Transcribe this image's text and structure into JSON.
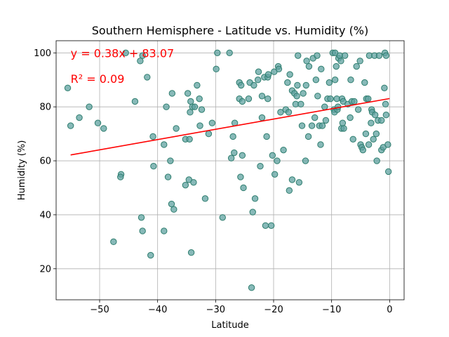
{
  "chart_data": {
    "type": "scatter",
    "title": "Southern Hemisphere - Latitude vs. Humidity (%)",
    "xlabel": "Latitude",
    "ylabel": "Humidity (%)",
    "xlim": [
      -57.5,
      2.5
    ],
    "ylim": [
      8.5,
      104.5
    ],
    "xticks": [
      -50,
      -40,
      -30,
      -20,
      -10,
      0
    ],
    "yticks": [
      20,
      40,
      60,
      80,
      100
    ],
    "grid": true,
    "marker_fill": "#5fa2a0",
    "marker_edge": "#2e7d6e",
    "regression": {
      "slope": 0.38,
      "intercept": 83.07,
      "x_range": [
        -55,
        0
      ],
      "color": "#ff0000",
      "equation_label": "y = 0.38x + 83.07",
      "r2_label": "R² = 0.09",
      "equation_pos": [
        -55,
        100
      ],
      "r2_pos": [
        -55,
        90.5
      ]
    },
    "points": [
      [
        -55.5,
        87
      ],
      [
        -55,
        73
      ],
      [
        -53.5,
        76
      ],
      [
        -51.8,
        80
      ],
      [
        -50.3,
        74
      ],
      [
        -49.3,
        72
      ],
      [
        -47.6,
        30
      ],
      [
        -46.3,
        55
      ],
      [
        -46.4,
        54
      ],
      [
        -45.5,
        100
      ],
      [
        -43.9,
        82
      ],
      [
        -43,
        97
      ],
      [
        -42.6,
        99
      ],
      [
        -42.8,
        39
      ],
      [
        -42.6,
        34
      ],
      [
        -41.8,
        91
      ],
      [
        -41.2,
        25
      ],
      [
        -40.8,
        69
      ],
      [
        -40.7,
        58
      ],
      [
        -38.9,
        66
      ],
      [
        -38.9,
        34
      ],
      [
        -38.5,
        80
      ],
      [
        -38.2,
        54
      ],
      [
        -37.8,
        60
      ],
      [
        -37.6,
        44
      ],
      [
        -37.5,
        85
      ],
      [
        -37.2,
        42
      ],
      [
        -36.8,
        72
      ],
      [
        -35.2,
        68
      ],
      [
        -35.2,
        51
      ],
      [
        -34.8,
        85
      ],
      [
        -34.6,
        53
      ],
      [
        -34.5,
        68
      ],
      [
        -34.4,
        78
      ],
      [
        -34.3,
        82
      ],
      [
        -34.2,
        26
      ],
      [
        -34,
        80
      ],
      [
        -33.8,
        52
      ],
      [
        -33.6,
        80
      ],
      [
        -33.2,
        88
      ],
      [
        -32.8,
        83
      ],
      [
        -32.7,
        73
      ],
      [
        -32.4,
        79
      ],
      [
        -31.8,
        46
      ],
      [
        -31.2,
        70
      ],
      [
        -30.6,
        74
      ],
      [
        -29.9,
        94
      ],
      [
        -29.7,
        100
      ],
      [
        -28.8,
        39
      ],
      [
        -27.6,
        100
      ],
      [
        -27.3,
        61
      ],
      [
        -27,
        69
      ],
      [
        -26.8,
        63
      ],
      [
        -26.7,
        74
      ],
      [
        -25.9,
        89
      ],
      [
        -25.9,
        83
      ],
      [
        -25.7,
        54
      ],
      [
        -25.6,
        88
      ],
      [
        -25.4,
        82
      ],
      [
        -25.4,
        62
      ],
      [
        -25.2,
        50
      ],
      [
        -24.3,
        83
      ],
      [
        -24.1,
        89
      ],
      [
        -23.8,
        13
      ],
      [
        -23.6,
        41
      ],
      [
        -23.4,
        88
      ],
      [
        -23.2,
        46
      ],
      [
        -22.7,
        90
      ],
      [
        -22.6,
        93
      ],
      [
        -22.3,
        58
      ],
      [
        -22,
        76
      ],
      [
        -22,
        84
      ],
      [
        -21.6,
        91
      ],
      [
        -21.4,
        36
      ],
      [
        -21.2,
        69
      ],
      [
        -21,
        91
      ],
      [
        -21,
        83
      ],
      [
        -20.9,
        92
      ],
      [
        -20.4,
        36
      ],
      [
        -20.2,
        62
      ],
      [
        -19.9,
        93
      ],
      [
        -19.8,
        55
      ],
      [
        -19.4,
        60
      ],
      [
        -19.2,
        95
      ],
      [
        -19.1,
        94
      ],
      [
        -18.8,
        78
      ],
      [
        -18.3,
        64
      ],
      [
        -17.9,
        79
      ],
      [
        -17.6,
        89
      ],
      [
        -17.4,
        78
      ],
      [
        -17.3,
        49
      ],
      [
        -17.2,
        92
      ],
      [
        -16.8,
        53
      ],
      [
        -16.8,
        86
      ],
      [
        -16.4,
        85
      ],
      [
        -16.2,
        81
      ],
      [
        -16,
        84
      ],
      [
        -15.9,
        88
      ],
      [
        -15.8,
        99
      ],
      [
        -15.6,
        52
      ],
      [
        -15.3,
        81
      ],
      [
        -15.1,
        73
      ],
      [
        -14.9,
        85
      ],
      [
        -14.5,
        60
      ],
      [
        -14.4,
        88
      ],
      [
        -14.3,
        97
      ],
      [
        -14,
        69
      ],
      [
        -13.9,
        95
      ],
      [
        -13.4,
        73
      ],
      [
        -13.2,
        98
      ],
      [
        -12.9,
        76
      ],
      [
        -12.7,
        90
      ],
      [
        -12.5,
        99
      ],
      [
        -12.4,
        84
      ],
      [
        -12.1,
        73
      ],
      [
        -11.9,
        66
      ],
      [
        -11.8,
        94
      ],
      [
        -11.6,
        73
      ],
      [
        -11.2,
        80
      ],
      [
        -11,
        75
      ],
      [
        -10.7,
        83
      ],
      [
        -10.4,
        89
      ],
      [
        -10.2,
        83
      ],
      [
        -9.8,
        100
      ],
      [
        -9.6,
        79
      ],
      [
        -9.5,
        78
      ],
      [
        -9.4,
        90
      ],
      [
        -9.4,
        100
      ],
      [
        -9.2,
        95
      ],
      [
        -9.1,
        83
      ],
      [
        -9,
        79
      ],
      [
        -8.9,
        80
      ],
      [
        -8.8,
        98
      ],
      [
        -8.6,
        99
      ],
      [
        -8.4,
        97
      ],
      [
        -8.3,
        72
      ],
      [
        -8.2,
        83
      ],
      [
        -8.1,
        74
      ],
      [
        -8,
        82
      ],
      [
        -7.9,
        72
      ],
      [
        -7.7,
        99
      ],
      [
        -7.2,
        81
      ],
      [
        -6.8,
        76
      ],
      [
        -6.7,
        90
      ],
      [
        -6.5,
        82
      ],
      [
        -6.3,
        68
      ],
      [
        -6.1,
        82
      ],
      [
        -5.7,
        95
      ],
      [
        -5.4,
        79
      ],
      [
        -5.1,
        97
      ],
      [
        -5,
        66
      ],
      [
        -4.8,
        65
      ],
      [
        -4.6,
        64
      ],
      [
        -4.3,
        89
      ],
      [
        -4.1,
        70
      ],
      [
        -4,
        83
      ],
      [
        -3.7,
        83
      ],
      [
        -3.6,
        66
      ],
      [
        -3.5,
        99
      ],
      [
        -3.2,
        74
      ],
      [
        -3.1,
        79
      ],
      [
        -3,
        78
      ],
      [
        -2.8,
        68
      ],
      [
        -2.6,
        99
      ],
      [
        -2.5,
        77
      ],
      [
        -2.3,
        70
      ],
      [
        -2.2,
        60
      ],
      [
        -2,
        75
      ],
      [
        -1.8,
        99
      ],
      [
        -1.4,
        75
      ],
      [
        -1.4,
        64
      ],
      [
        -1.1,
        65
      ],
      [
        -0.9,
        87
      ],
      [
        -0.8,
        100
      ],
      [
        -0.7,
        81
      ],
      [
        -0.6,
        99
      ],
      [
        -0.6,
        77
      ],
      [
        -0.3,
        66
      ],
      [
        -0.2,
        56
      ]
    ]
  }
}
